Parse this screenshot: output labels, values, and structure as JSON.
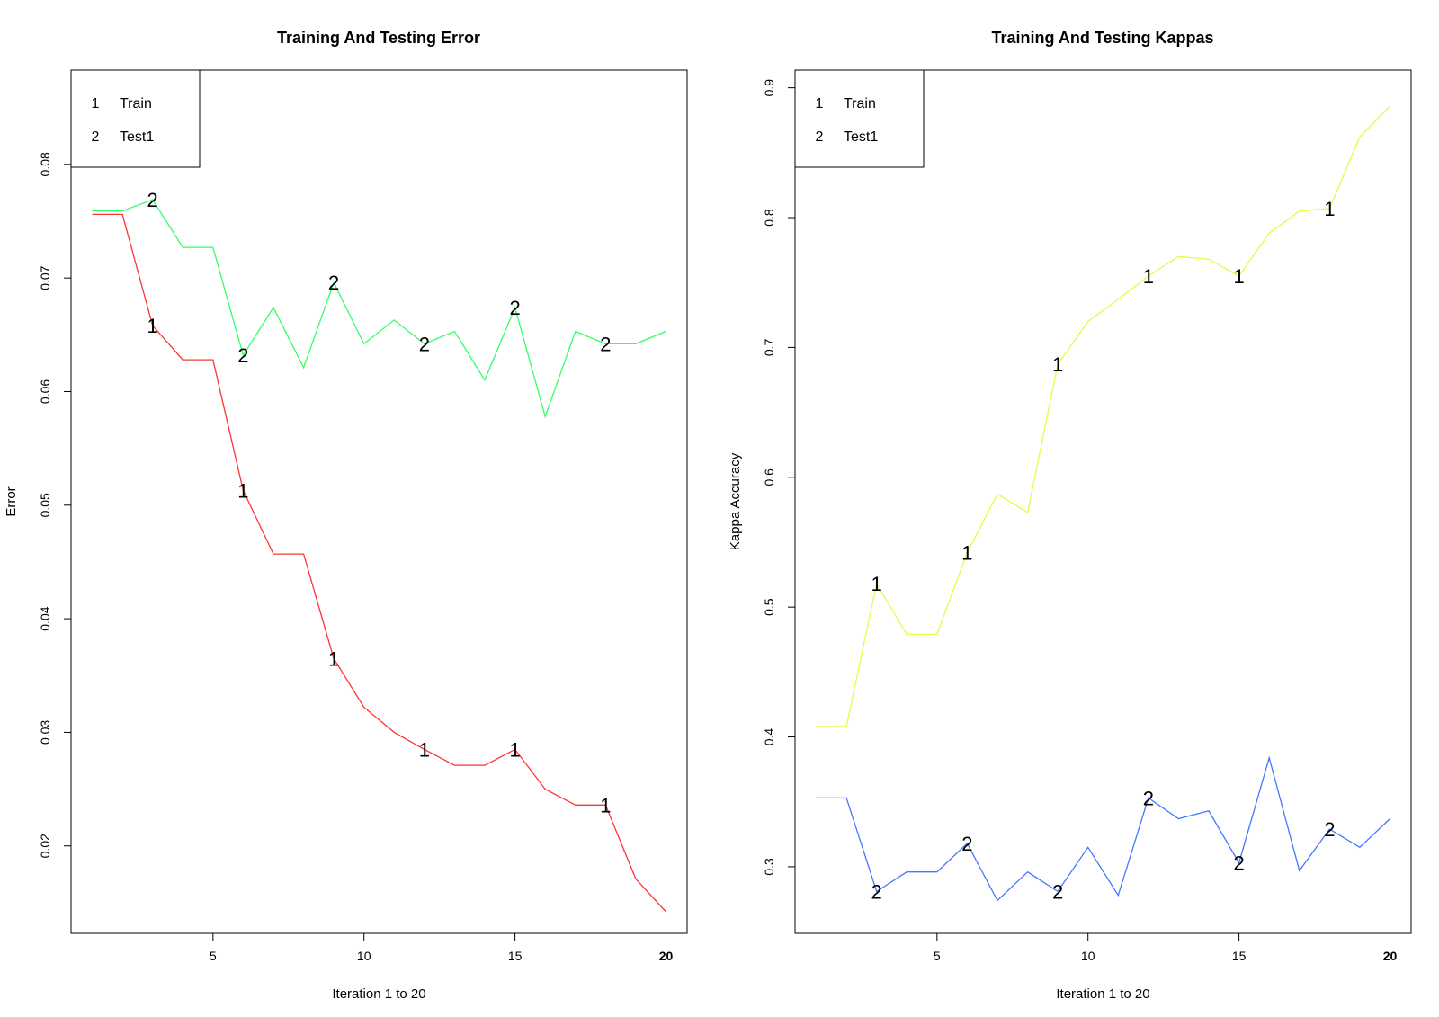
{
  "chart_data": [
    {
      "type": "line",
      "title": "Training And Testing Error",
      "xlabel": "Iteration 1 to 20",
      "ylabel": "Error",
      "xlim": [
        0.3,
        20.7
      ],
      "ylim": [
        0.0123,
        0.0883
      ],
      "x_ticks": [
        5,
        10,
        15,
        20
      ],
      "x_tick_labels": [
        "5",
        "10",
        "15",
        "20"
      ],
      "x_tick_bold": [
        false,
        false,
        false,
        true
      ],
      "y_ticks": [
        0.02,
        0.03,
        0.04,
        0.05,
        0.06,
        0.07,
        0.08
      ],
      "y_tick_labels": [
        "0.02",
        "0.03",
        "0.04",
        "0.05",
        "0.06",
        "0.07",
        "0.08"
      ],
      "grid": false,
      "legend": {
        "position": "top-left",
        "entries": [
          {
            "symbol": "1",
            "label": "Train"
          },
          {
            "symbol": "2",
            "label": "Test1"
          }
        ]
      },
      "x": [
        1,
        2,
        3,
        4,
        5,
        6,
        7,
        8,
        9,
        10,
        11,
        12,
        13,
        14,
        15,
        16,
        17,
        18,
        19,
        20
      ],
      "series": [
        {
          "symbol": "1",
          "color": "#ff3333",
          "marker_every": 3,
          "values": [
            0.0756,
            0.0756,
            0.0658,
            0.0628,
            0.0628,
            0.0513,
            0.0457,
            0.0457,
            0.0365,
            0.0322,
            0.03,
            0.0285,
            0.0271,
            0.0271,
            0.0285,
            0.025,
            0.0236,
            0.0236,
            0.0171,
            0.0142
          ]
        },
        {
          "symbol": "2",
          "color": "#33ff66",
          "marker_every": 3,
          "values": [
            0.0759,
            0.0759,
            0.0769,
            0.0727,
            0.0727,
            0.0632,
            0.0674,
            0.0621,
            0.0696,
            0.0642,
            0.0663,
            0.0642,
            0.0653,
            0.061,
            0.0674,
            0.0578,
            0.0653,
            0.0642,
            0.0642,
            0.0653
          ]
        }
      ]
    },
    {
      "type": "line",
      "title": "Training And Testing Kappas",
      "xlabel": "Iteration 1 to 20",
      "ylabel": "Kappa Accuracy",
      "xlim": [
        0.3,
        20.7
      ],
      "ylim": [
        0.2487,
        0.9136
      ],
      "x_ticks": [
        5,
        10,
        15,
        20
      ],
      "x_tick_labels": [
        "5",
        "10",
        "15",
        "20"
      ],
      "x_tick_bold": [
        false,
        false,
        false,
        true
      ],
      "y_ticks": [
        0.3,
        0.4,
        0.5,
        0.6,
        0.7,
        0.8,
        0.9
      ],
      "y_tick_labels": [
        "0.3",
        "0.4",
        "0.5",
        "0.6",
        "0.7",
        "0.8",
        "0.9"
      ],
      "grid": false,
      "legend": {
        "position": "top-left",
        "entries": [
          {
            "symbol": "1",
            "label": "Train"
          },
          {
            "symbol": "2",
            "label": "Test1"
          }
        ]
      },
      "x": [
        1,
        2,
        3,
        4,
        5,
        6,
        7,
        8,
        9,
        10,
        11,
        12,
        13,
        14,
        15,
        16,
        17,
        18,
        19,
        20
      ],
      "series": [
        {
          "symbol": "1",
          "color": "#ddff44",
          "marker_every": 3,
          "values": [
            0.408,
            0.408,
            0.518,
            0.479,
            0.479,
            0.542,
            0.587,
            0.573,
            0.687,
            0.72,
            0.737,
            0.755,
            0.77,
            0.768,
            0.755,
            0.788,
            0.805,
            0.807,
            0.862,
            0.886
          ]
        },
        {
          "symbol": "2",
          "color": "#4477ff",
          "marker_every": 3,
          "values": [
            0.353,
            0.353,
            0.281,
            0.296,
            0.296,
            0.318,
            0.274,
            0.296,
            0.281,
            0.315,
            0.278,
            0.353,
            0.337,
            0.343,
            0.303,
            0.384,
            0.297,
            0.329,
            0.315,
            0.337
          ]
        }
      ]
    }
  ]
}
